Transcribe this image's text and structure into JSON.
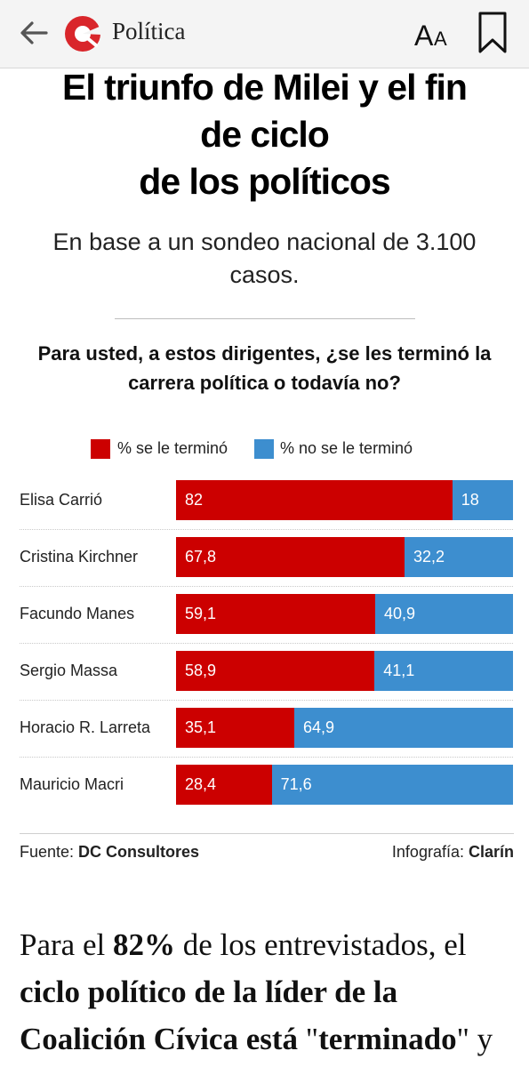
{
  "topbar": {
    "section_label": "Política",
    "font_button_label": "AA"
  },
  "article": {
    "title_lines": [
      "El triunfo de Milei y el fin",
      "de ciclo",
      "de los políticos"
    ],
    "subtitle": "En base a un sondeo nacional de 3.100 casos.",
    "question": "Para usted, a estos dirigentes, ¿se les terminó la carrera política o todavía no?",
    "body_parts": [
      {
        "text": "Para el ",
        "bold": false
      },
      {
        "text": "82%",
        "bold": true
      },
      {
        "text": " de los entrevistados, el ",
        "bold": false
      },
      {
        "text": "ciclo político de la líder de la Coalición Cívica está ",
        "bold": true
      },
      {
        "text": "\"",
        "bold": false
      },
      {
        "text": "terminado",
        "bold": true
      },
      {
        "text": "\" y",
        "bold": false
      }
    ]
  },
  "chart_data": {
    "type": "bar",
    "stacked": true,
    "orientation": "horizontal",
    "categories": [
      "Elisa Carrió",
      "Cristina Kirchner",
      "Facundo Manes",
      "Sergio Massa",
      "Horacio R. Larreta",
      "Mauricio Macri"
    ],
    "series": [
      {
        "name": "% se le terminó",
        "color": "#cc0000",
        "values": [
          82,
          67.8,
          59.1,
          58.9,
          35.1,
          28.4
        ],
        "labels": [
          "82",
          "67,8",
          "59,1",
          "58,9",
          "35,1",
          "28,4"
        ]
      },
      {
        "name": "% no se le terminó",
        "color": "#3d8ecf",
        "values": [
          18,
          32.2,
          40.9,
          41.1,
          64.9,
          71.6
        ],
        "labels": [
          "18",
          "32,2",
          "40,9",
          "41,1",
          "64,9",
          "71,6"
        ]
      }
    ],
    "xlim": [
      0,
      100
    ],
    "legend_position": "top-center"
  },
  "footer": {
    "source_prefix": "Fuente: ",
    "source_name": "DC Consultores",
    "credit_prefix": "Infografía: ",
    "credit_name": "Clarín"
  },
  "colors": {
    "brand": "#d9262b",
    "red": "#cc0000",
    "blue": "#3d8ecf"
  },
  "icons": {
    "back": "arrow-left-icon",
    "logo": "clarin-logo",
    "font": "font-size-icon",
    "bookmark": "bookmark-icon"
  }
}
